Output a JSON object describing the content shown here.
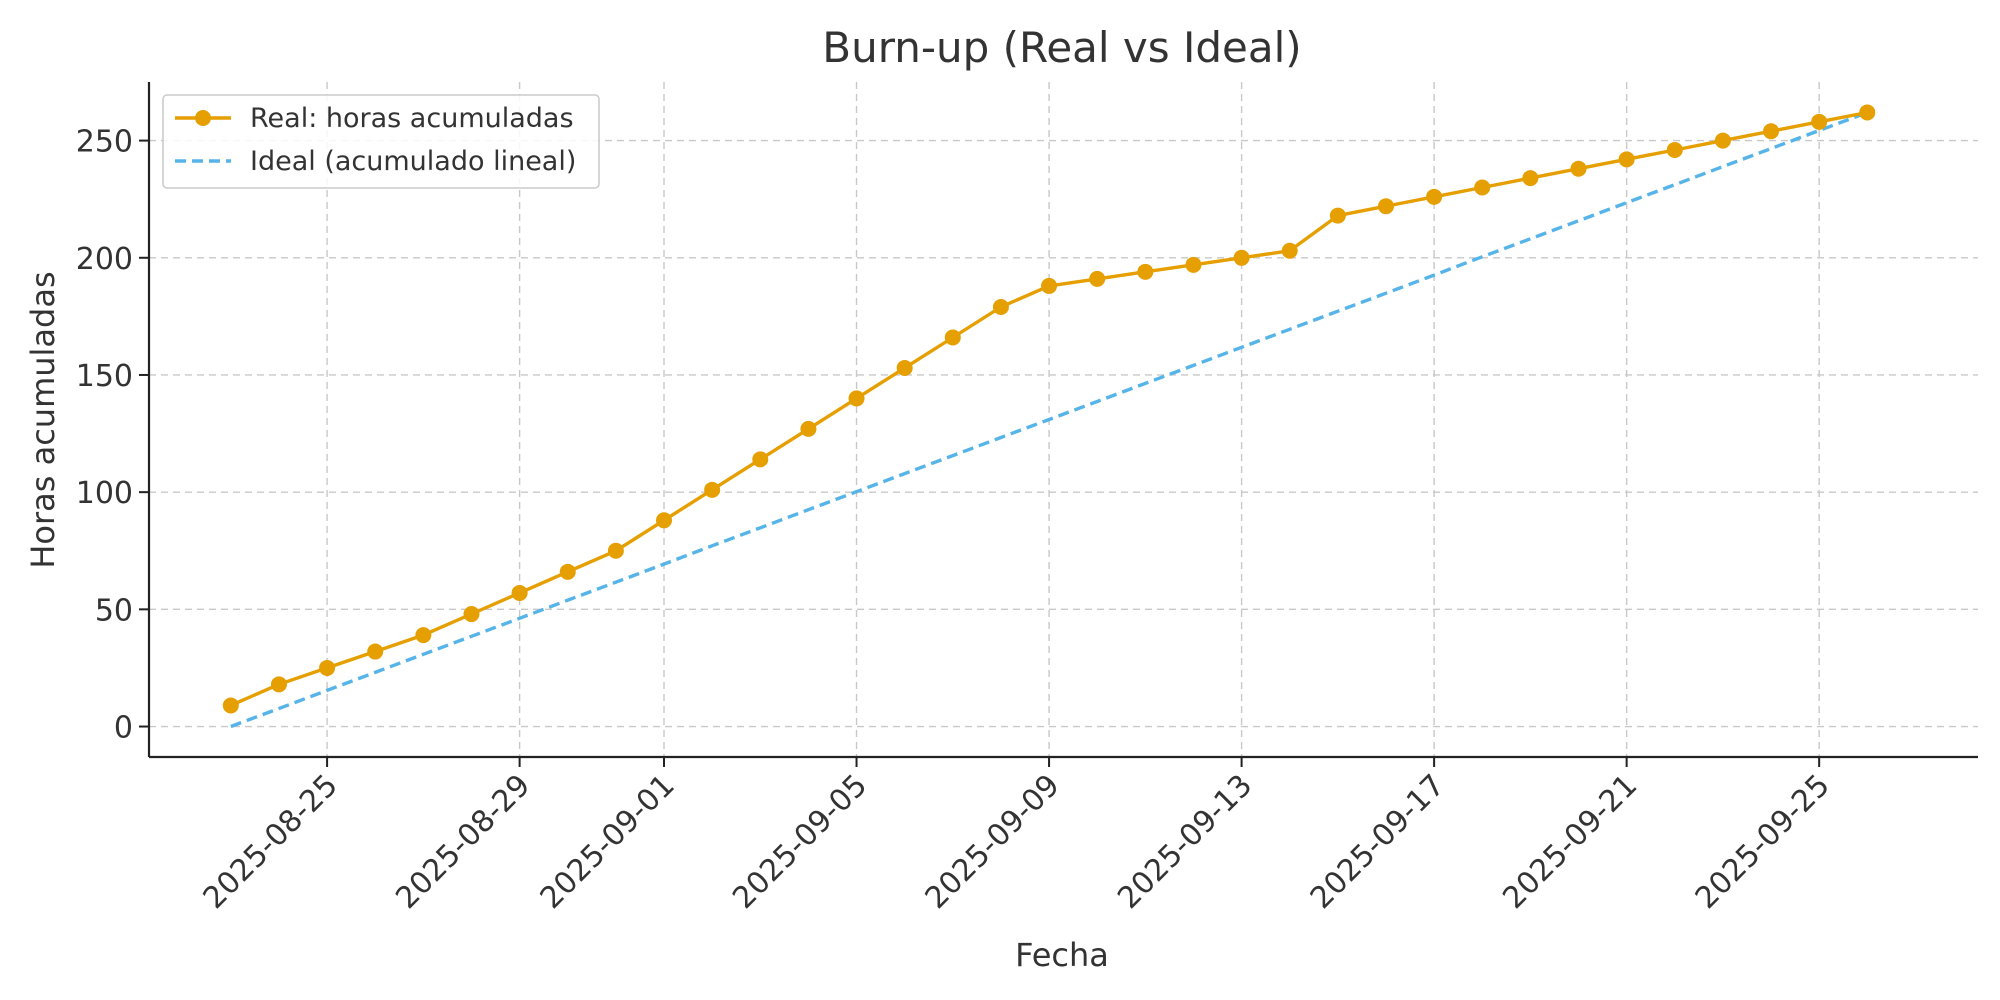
{
  "chart_data": {
    "type": "line",
    "title": "Burn-up (Real vs Ideal)",
    "xlabel": "Fecha",
    "ylabel": "Horas acumuladas",
    "x_start": "2025-08-23",
    "x": [
      "2025-08-23",
      "2025-08-24",
      "2025-08-25",
      "2025-08-26",
      "2025-08-27",
      "2025-08-28",
      "2025-08-29",
      "2025-08-30",
      "2025-08-31",
      "2025-09-01",
      "2025-09-02",
      "2025-09-03",
      "2025-09-04",
      "2025-09-05",
      "2025-09-06",
      "2025-09-07",
      "2025-09-08",
      "2025-09-09",
      "2025-09-10",
      "2025-09-11",
      "2025-09-12",
      "2025-09-13",
      "2025-09-14",
      "2025-09-15",
      "2025-09-16",
      "2025-09-17",
      "2025-09-18",
      "2025-09-19",
      "2025-09-20",
      "2025-09-21",
      "2025-09-22",
      "2025-09-23",
      "2025-09-24",
      "2025-09-25",
      "2025-09-26"
    ],
    "ylim": [
      -13,
      275
    ],
    "xlim": [
      "2025-08-21.3",
      "2025-09-28.3"
    ],
    "yticks": [
      0,
      50,
      100,
      150,
      200,
      250
    ],
    "xticks": [
      "2025-08-25",
      "2025-08-29",
      "2025-09-01",
      "2025-09-05",
      "2025-09-09",
      "2025-09-13",
      "2025-09-17",
      "2025-09-21",
      "2025-09-25"
    ],
    "grid": true,
    "legend_position": "top-left",
    "series": [
      {
        "name": "Real: horas acumuladas",
        "style": "solid-with-markers",
        "color": "#E69F00",
        "values": [
          9,
          18,
          25,
          32,
          39,
          48,
          57,
          66,
          75,
          88,
          101,
          114,
          127,
          140,
          153,
          166,
          179,
          188,
          191,
          194,
          197,
          200,
          203,
          218,
          222,
          226,
          230,
          234,
          238,
          242,
          246,
          250,
          254,
          258,
          262
        ]
      },
      {
        "name": "Ideal (acumulado lineal)",
        "style": "dashed",
        "color": "#56B4E9",
        "values": [
          0,
          7.7,
          15.4,
          23.1,
          30.8,
          38.5,
          46.2,
          53.9,
          61.6,
          69.3,
          77.1,
          84.8,
          92.5,
          100.2,
          107.9,
          115.6,
          123.3,
          131.0,
          138.7,
          146.4,
          154.1,
          161.8,
          169.5,
          177.2,
          184.9,
          192.6,
          200.4,
          208.1,
          215.8,
          223.5,
          231.2,
          238.9,
          246.6,
          254.3,
          262
        ]
      }
    ]
  }
}
